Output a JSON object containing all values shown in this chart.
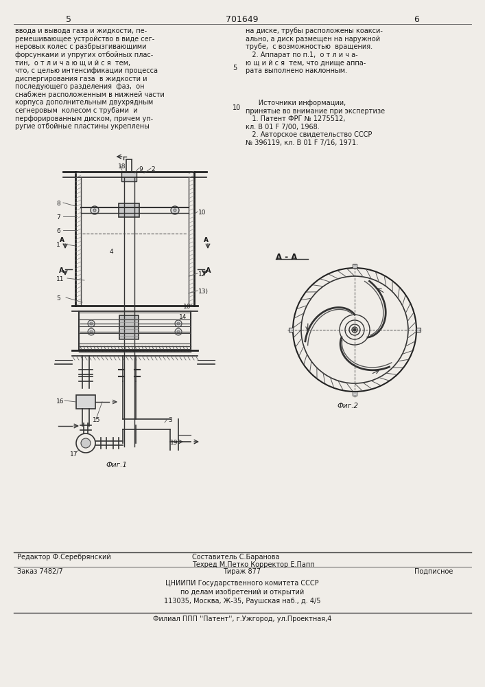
{
  "bg_color": "#f0ede8",
  "page_color": "#f0ede8",
  "title_center": "701649",
  "page_num_left": "5",
  "page_num_right": "6",
  "left_text": "ввода и вывода газа и жидкости, пе-\nремешивающее устройство в виде сег-\nнеровых колес с разбрызгивающими\nфорсунками и упругих отбойных плас-\nтин,  о т л и ч а ю щ и й с я  тем,\nчто, с целью интенсификации процесса\nдиспергирования газа  в жидкости и\nпоследующего разделения  фаз,  он\nснабжен расположенным в нижней части\nкорпуса дополнительным двухрядным\nсегнеровым  колесом с трубами  и\nперфорированным диском, причем уп-\nругие отбойные пластины укреплены",
  "right_text_top": "на диске, трубы расположены коакси-\nально, а диск размещен на наружной\nтрубе,  с возможностью  вращения.\n   2. Аппарат по п.1,  о т л и ч а-\nю щ и й с я  тем, что днище аппа-\nрата выполнено наклонным.",
  "right_text_sources": "      Источники информации,\nпринятые во внимание при экспертизе\n   1. Патент ФРГ № 1275512,\nкл. В 01 F 7/00, 1968.\n   2. Авторское свидетельство СССР\n№ 396119, кл. В 01 F 7/16, 1971.",
  "line_num_5": "5",
  "line_num_10": "10",
  "section_label": "А - А",
  "bottom_editor": "Редактор Ф.Серебрянский",
  "bottom_composer": "Составитель С.Баранова",
  "bottom_tech": "Техред М.Петко Корректор Е.Папп",
  "bottom_order": "Заказ 7482/7",
  "bottom_print": "Тираж 877",
  "bottom_sign": "Подписное",
  "bottom_org": "ЦНИИПИ Государственного комитета СССР",
  "bottom_org2": "по делам изобретений и открытий",
  "bottom_address": "113035, Москва, Ж-35, Раушская наб., д. 4/5",
  "bottom_branch": "Филиал ППП ''Патент'', г.Ужгород, ул.Проектная,4"
}
